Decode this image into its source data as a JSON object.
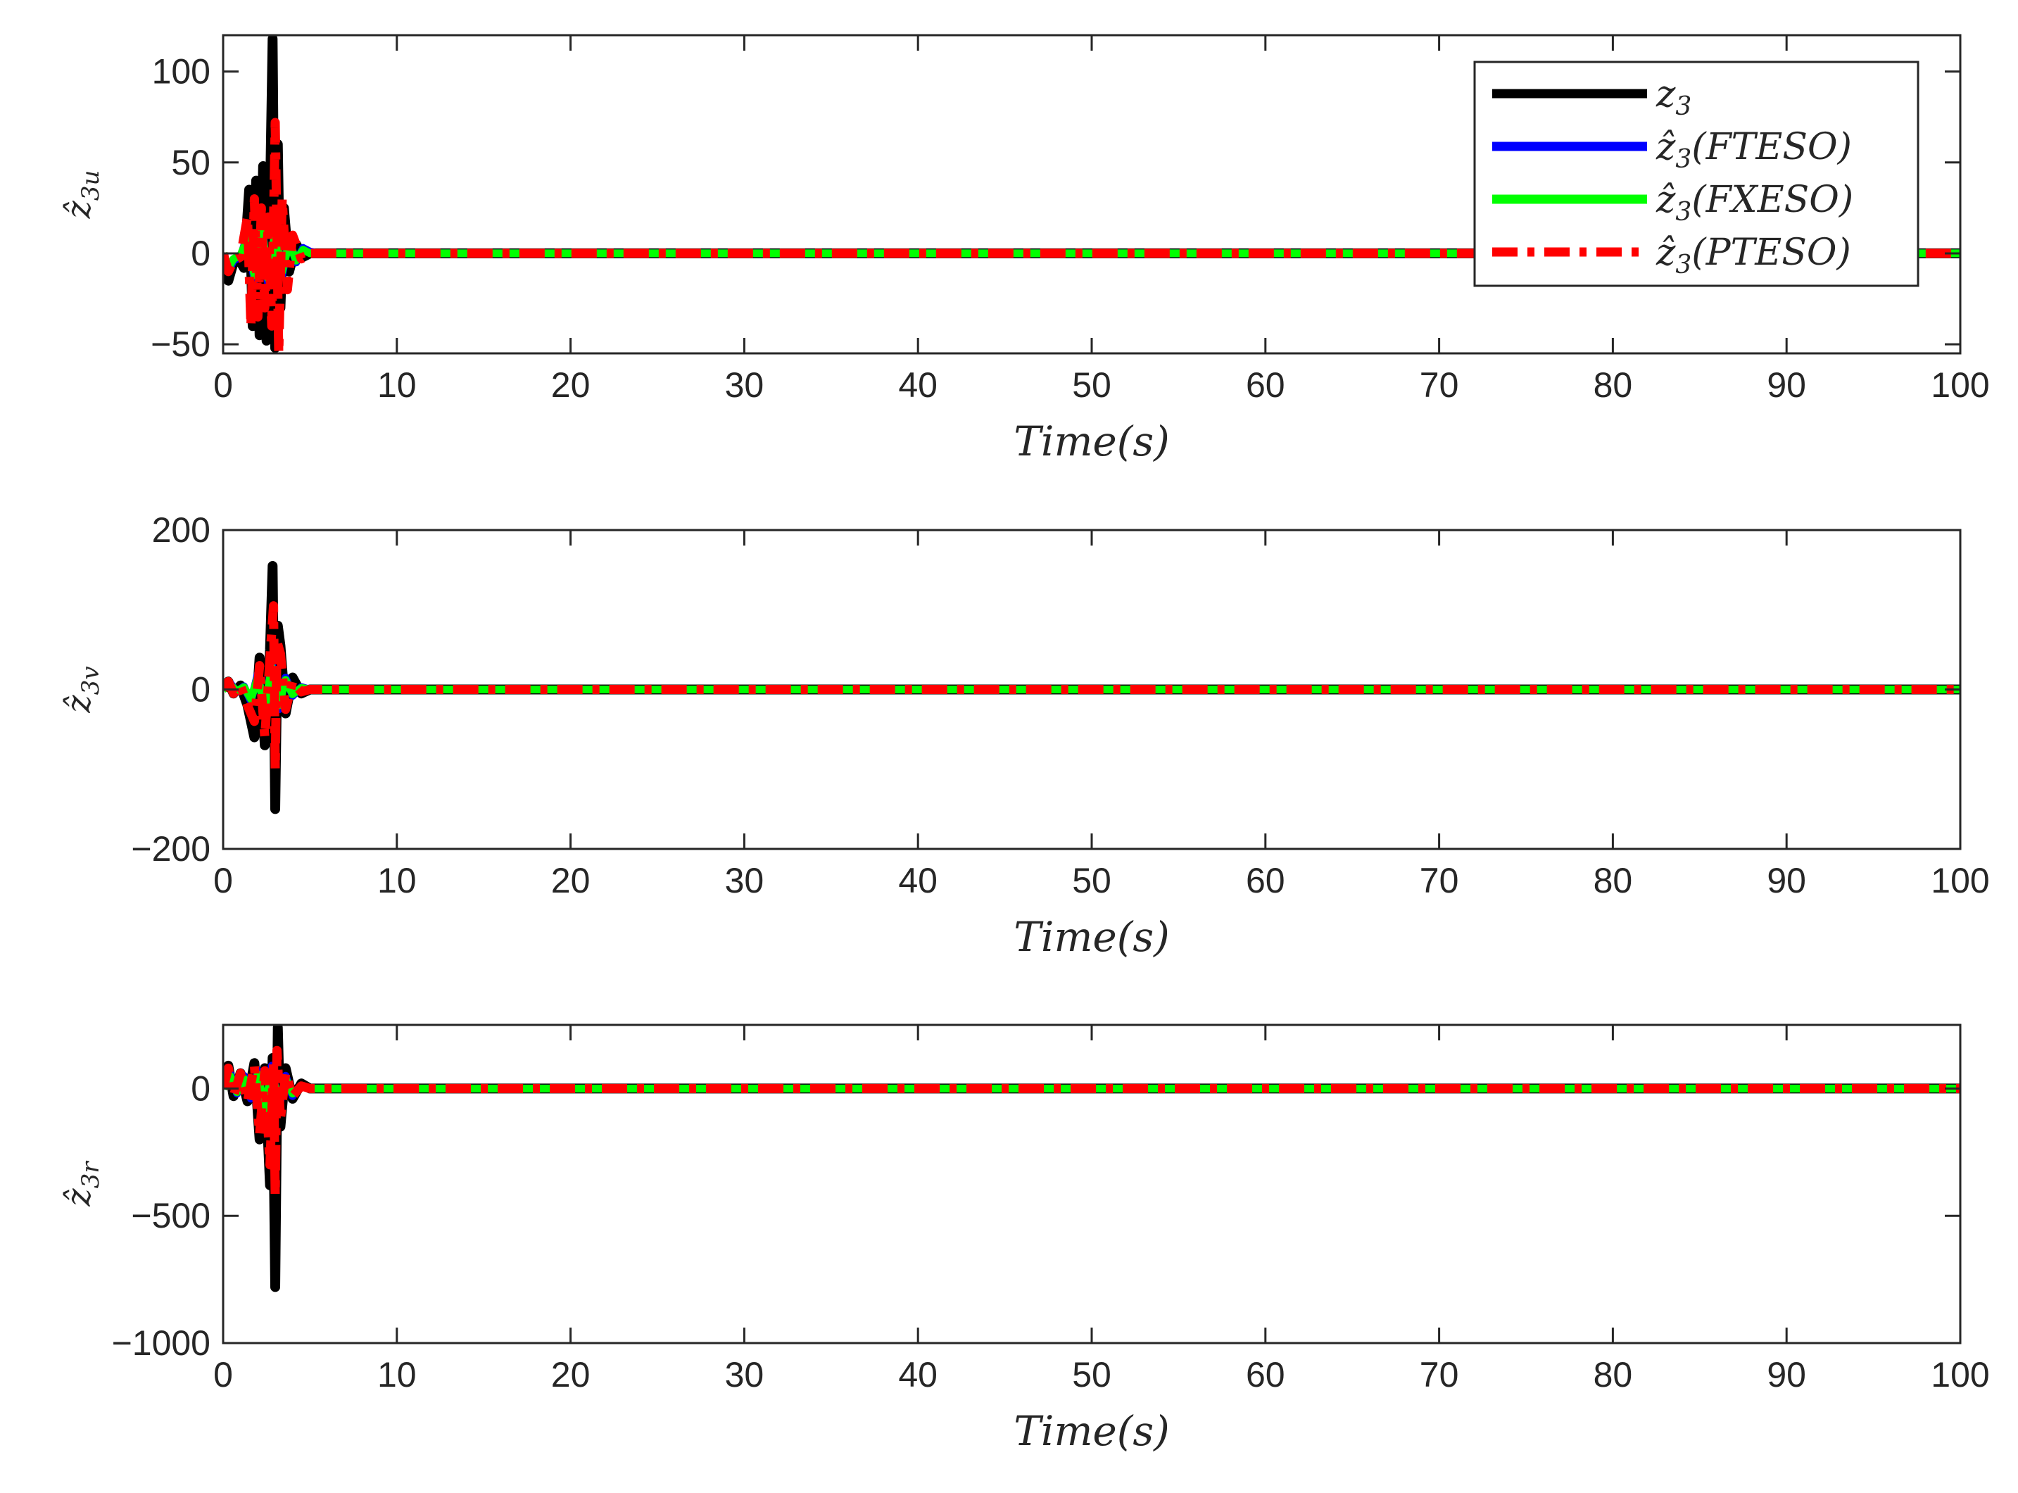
{
  "series_styles": [
    {
      "key": "z3",
      "color": "#000000",
      "dash": "solid"
    },
    {
      "key": "ftseo",
      "color": "#0000ff",
      "dash": "solid"
    },
    {
      "key": "fxeso",
      "color": "#00ff00",
      "dash": "solid"
    },
    {
      "key": "pteso",
      "color": "#ff0000",
      "dash": "dashdot"
    }
  ],
  "legend": {
    "entries": [
      {
        "base": "z",
        "sub": "3",
        "suffix": ""
      },
      {
        "base": "ẑ",
        "sub": "3",
        "suffix": "(FTESO)"
      },
      {
        "base": "ẑ",
        "sub": "3",
        "suffix": "(FXESO)"
      },
      {
        "base": "ẑ",
        "sub": "3",
        "suffix": "(PTESO)"
      }
    ]
  },
  "chart_data": [
    {
      "type": "line",
      "title": "",
      "xlabel": "Time(s)",
      "ylabel": {
        "base": "ẑ",
        "sub": "3u"
      },
      "xlim": [
        0,
        100
      ],
      "ylim": [
        -55,
        120
      ],
      "xticks": [
        0,
        10,
        20,
        30,
        40,
        50,
        60,
        70,
        80,
        90,
        100
      ],
      "yticks": [
        -50,
        0,
        50,
        100
      ],
      "series": [
        {
          "name": "z3",
          "x": [
            0,
            0.3,
            0.6,
            0.9,
            1.2,
            1.5,
            1.7,
            1.9,
            2.1,
            2.3,
            2.5,
            2.7,
            2.85,
            3.0,
            3.15,
            3.3,
            3.5,
            3.8,
            4.2,
            4.6,
            5,
            6,
            8,
            20,
            40,
            60,
            80,
            100
          ],
          "y": [
            0,
            -15,
            -5,
            -3,
            -8,
            35,
            -40,
            40,
            -45,
            48,
            -48,
            30,
            118,
            -52,
            60,
            -30,
            25,
            -10,
            5,
            -2,
            0,
            0,
            0,
            0,
            0,
            0,
            0,
            0
          ]
        },
        {
          "name": "ẑ3(FTESO)",
          "x": [
            0,
            0.3,
            0.6,
            1.0,
            1.4,
            1.8,
            2.2,
            2.6,
            3.0,
            3.4,
            3.8,
            4.2,
            4.6,
            5.0,
            5.5,
            6,
            10,
            50,
            100
          ],
          "y": [
            0,
            -10,
            -4,
            -2,
            10,
            -15,
            20,
            -18,
            15,
            -12,
            8,
            -5,
            3,
            1,
            0,
            0,
            0,
            0,
            0
          ]
        },
        {
          "name": "ẑ3(FXESO)",
          "x": [
            0,
            0.3,
            0.6,
            1.0,
            1.4,
            1.8,
            2.2,
            2.6,
            3.0,
            3.4,
            3.8,
            4.2,
            4.6,
            5.0,
            6,
            10,
            50,
            100
          ],
          "y": [
            0,
            -8,
            -3,
            -1,
            8,
            -12,
            16,
            -14,
            12,
            -10,
            6,
            -4,
            2,
            0,
            0,
            0,
            0,
            0
          ]
        },
        {
          "name": "ẑ3(PTESO)",
          "x": [
            0,
            0.3,
            0.6,
            1.0,
            1.4,
            1.6,
            1.8,
            2.0,
            2.2,
            2.4,
            2.6,
            2.8,
            3.0,
            3.2,
            3.4,
            3.7,
            4.0,
            4.5,
            5,
            6,
            20,
            40,
            60,
            80,
            100
          ],
          "y": [
            0,
            -10,
            -4,
            -2,
            20,
            -40,
            30,
            -35,
            25,
            -30,
            20,
            -40,
            72,
            -55,
            30,
            -20,
            10,
            -3,
            0,
            0,
            0,
            0,
            0,
            0,
            0
          ]
        }
      ]
    },
    {
      "type": "line",
      "title": "",
      "xlabel": "Time(s)",
      "ylabel": {
        "base": "ẑ",
        "sub": "3v"
      },
      "xlim": [
        0,
        100
      ],
      "ylim": [
        -200,
        200
      ],
      "xticks": [
        0,
        10,
        20,
        30,
        40,
        50,
        60,
        70,
        80,
        90,
        100
      ],
      "yticks": [
        -200,
        0,
        200
      ],
      "series": [
        {
          "name": "z3",
          "x": [
            0,
            0.3,
            0.6,
            1.0,
            1.4,
            1.8,
            2.1,
            2.4,
            2.7,
            2.85,
            3.0,
            3.15,
            3.3,
            3.6,
            4.0,
            4.5,
            5,
            6,
            20,
            60,
            100
          ],
          "y": [
            0,
            10,
            -5,
            5,
            -20,
            -60,
            40,
            -70,
            50,
            155,
            -150,
            80,
            55,
            -30,
            15,
            -5,
            0,
            0,
            0,
            0,
            0
          ]
        },
        {
          "name": "ẑ3(FTESO)",
          "x": [
            0,
            0.4,
            0.8,
            1.2,
            1.6,
            2.0,
            2.4,
            2.8,
            3.2,
            3.6,
            4.0,
            4.5,
            5,
            6,
            50,
            100
          ],
          "y": [
            0,
            8,
            -3,
            4,
            -15,
            20,
            -30,
            35,
            -25,
            15,
            -8,
            3,
            0,
            0,
            0,
            0
          ]
        },
        {
          "name": "ẑ3(FXESO)",
          "x": [
            0,
            0.4,
            0.8,
            1.2,
            1.6,
            2.0,
            2.4,
            2.8,
            3.2,
            3.6,
            4.0,
            4.5,
            5,
            6,
            50,
            100
          ],
          "y": [
            0,
            6,
            -2,
            3,
            -12,
            16,
            -24,
            28,
            -20,
            12,
            -6,
            2,
            0,
            0,
            0,
            0
          ]
        },
        {
          "name": "ẑ3(PTESO)",
          "x": [
            0,
            0.3,
            0.6,
            1.0,
            1.4,
            1.8,
            2.1,
            2.4,
            2.7,
            2.9,
            3.0,
            3.1,
            3.3,
            3.6,
            4.0,
            4.5,
            5,
            6,
            20,
            60,
            100
          ],
          "y": [
            0,
            10,
            -5,
            5,
            -20,
            -40,
            30,
            -60,
            40,
            105,
            -100,
            60,
            45,
            -25,
            10,
            -3,
            0,
            0,
            0,
            0,
            0
          ]
        }
      ]
    },
    {
      "type": "line",
      "title": "",
      "xlabel": "Time(s)",
      "ylabel": {
        "base": "ẑ",
        "sub": "3r"
      },
      "xlim": [
        0,
        100
      ],
      "ylim": [
        -1000,
        250
      ],
      "xticks": [
        0,
        10,
        20,
        30,
        40,
        50,
        60,
        70,
        80,
        90,
        100
      ],
      "yticks": [
        -1000,
        -500,
        0
      ],
      "series": [
        {
          "name": "z3",
          "x": [
            0,
            0.3,
            0.6,
            1.0,
            1.4,
            1.8,
            2.1,
            2.4,
            2.7,
            2.85,
            3.0,
            3.15,
            3.3,
            3.6,
            4.0,
            4.5,
            5,
            6,
            20,
            60,
            100
          ],
          "y": [
            0,
            90,
            -30,
            60,
            -50,
            100,
            -200,
            80,
            -380,
            120,
            -780,
            240,
            -150,
            80,
            -40,
            20,
            0,
            0,
            0,
            0,
            0
          ]
        },
        {
          "name": "ẑ3(FTESO)",
          "x": [
            0,
            0.4,
            0.8,
            1.2,
            1.6,
            2.0,
            2.4,
            2.8,
            3.2,
            3.6,
            4.0,
            4.5,
            5,
            6,
            50,
            100
          ],
          "y": [
            0,
            60,
            -20,
            50,
            -40,
            70,
            -100,
            90,
            -80,
            50,
            -30,
            10,
            0,
            0,
            0,
            0
          ]
        },
        {
          "name": "ẑ3(FXESO)",
          "x": [
            0,
            0.4,
            0.8,
            1.2,
            1.6,
            2.0,
            2.4,
            2.8,
            3.2,
            3.6,
            4.0,
            4.5,
            5,
            6,
            50,
            100
          ],
          "y": [
            0,
            50,
            -15,
            40,
            -30,
            55,
            -80,
            70,
            -60,
            40,
            -20,
            8,
            0,
            0,
            0,
            0
          ]
        },
        {
          "name": "ẑ3(PTESO)",
          "x": [
            0,
            0.3,
            0.6,
            1.0,
            1.4,
            1.8,
            2.1,
            2.4,
            2.7,
            2.9,
            3.0,
            3.1,
            3.3,
            3.6,
            4.0,
            4.5,
            5,
            6,
            20,
            60,
            100
          ],
          "y": [
            0,
            80,
            -30,
            60,
            -50,
            90,
            -180,
            70,
            -300,
            100,
            -420,
            150,
            -120,
            60,
            -30,
            10,
            0,
            0,
            0,
            0,
            0
          ]
        }
      ]
    }
  ]
}
